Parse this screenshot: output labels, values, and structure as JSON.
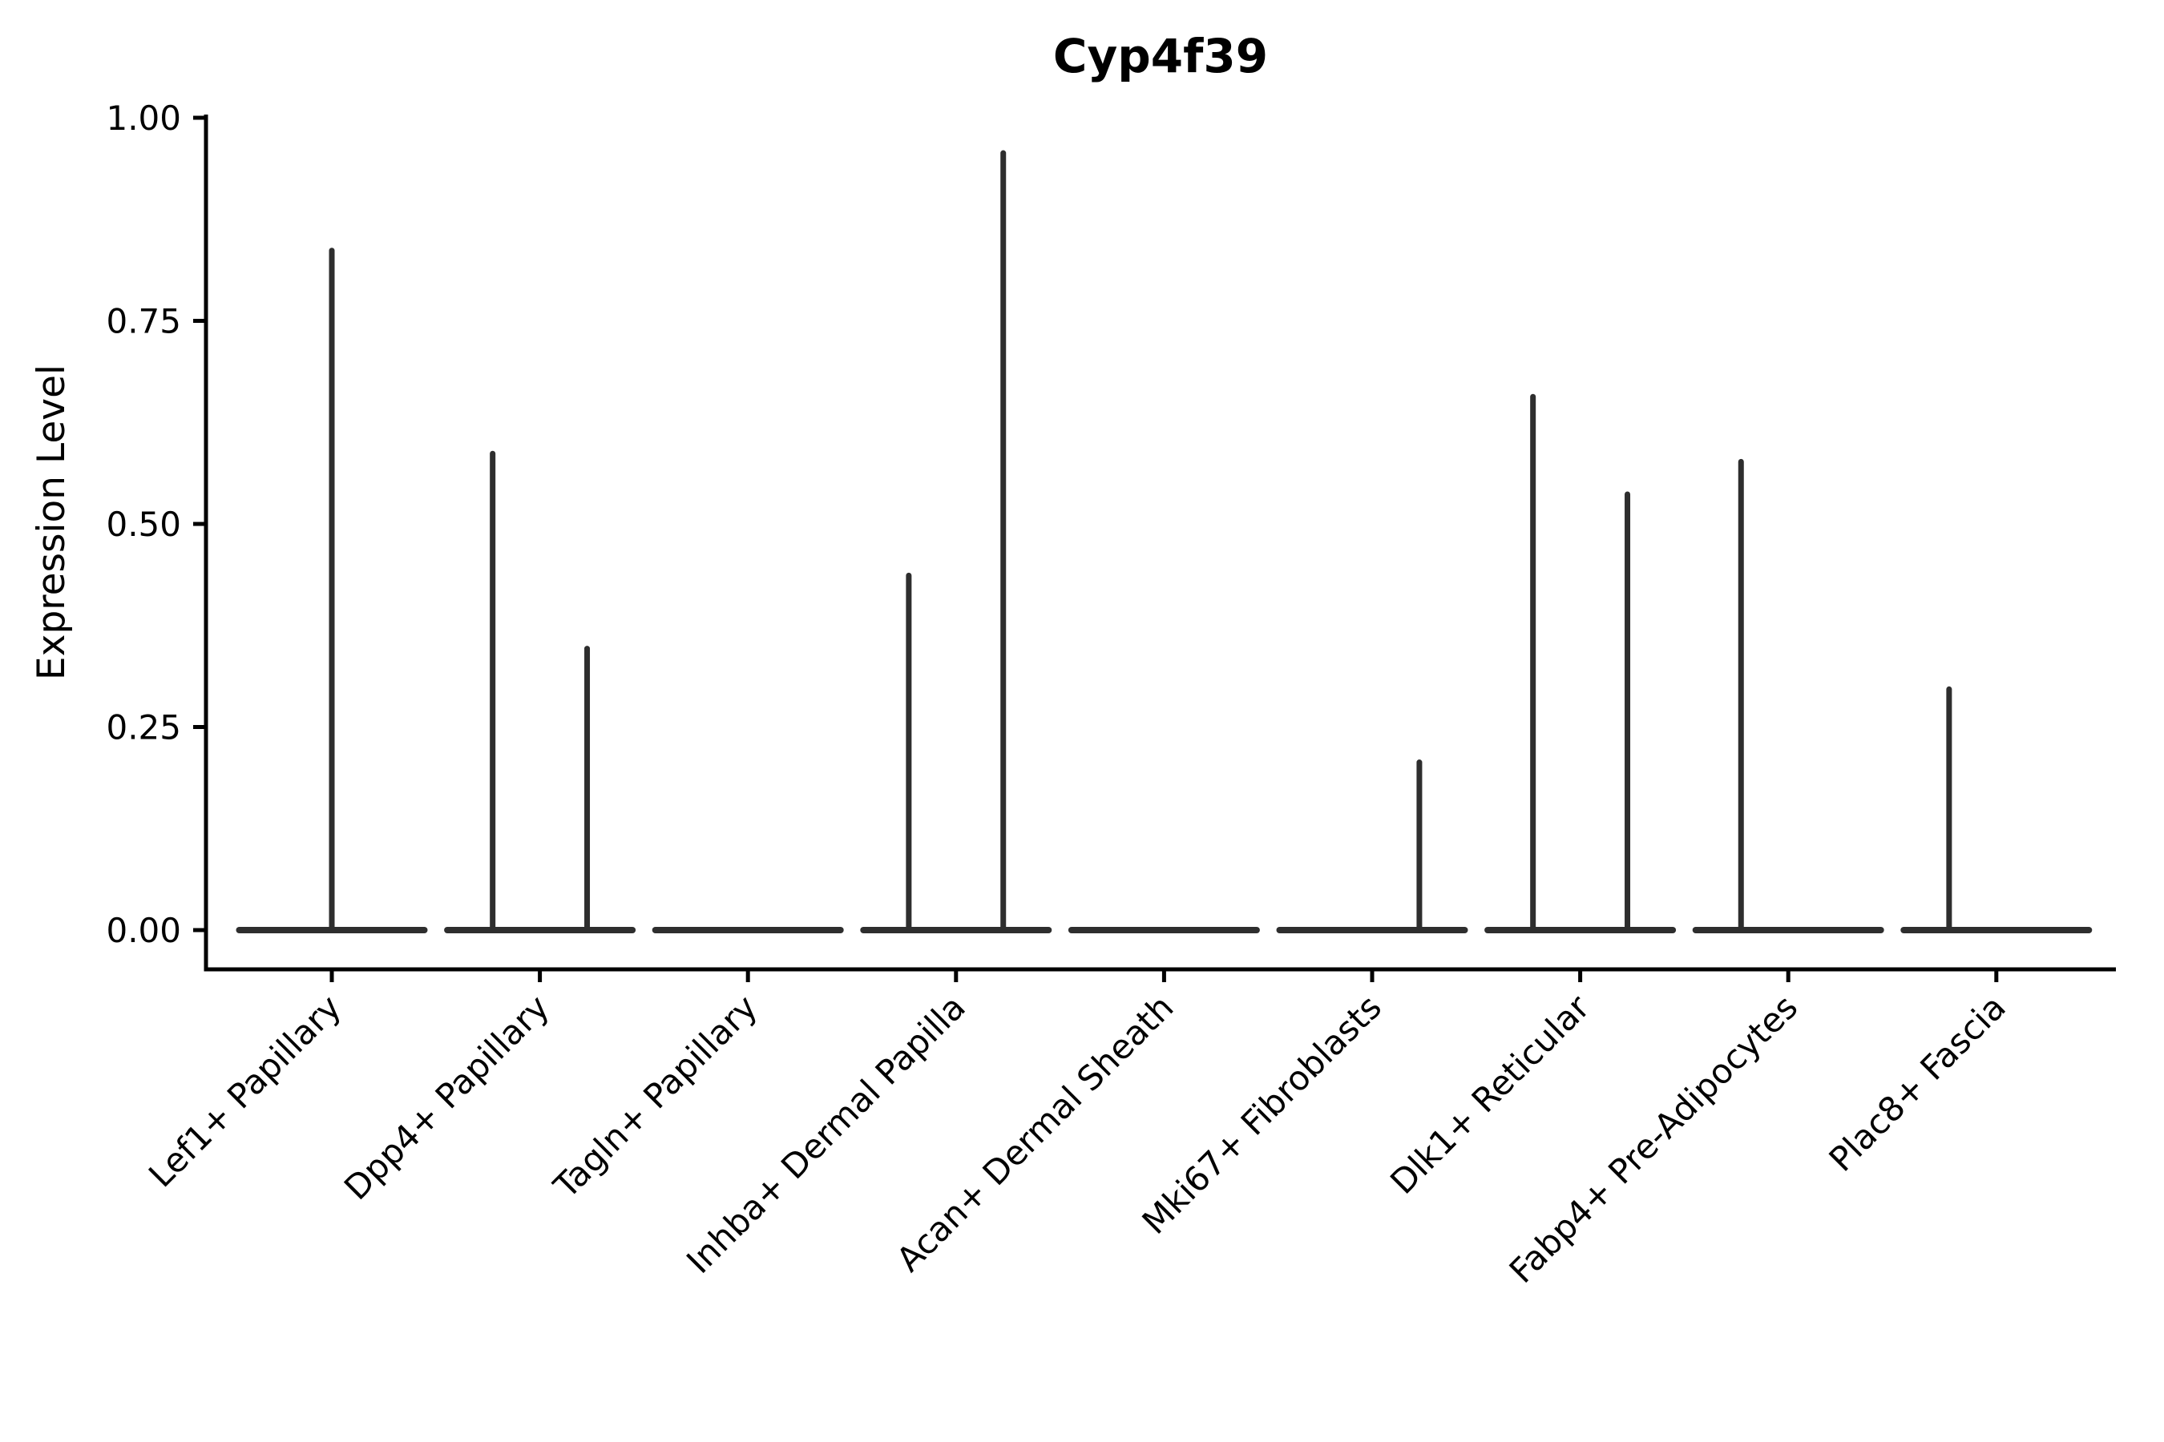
{
  "title": "Cyp4f39",
  "colors": {
    "violin": "#2e2e2e",
    "axis": "#000000",
    "text": "#000000",
    "background": "#ffffff"
  },
  "chart_data": {
    "type": "violin",
    "title": "Cyp4f39",
    "xlabel": "",
    "ylabel": "Expression Level",
    "ylim": [
      0.0,
      1.0
    ],
    "yticks": [
      0.0,
      0.25,
      0.5,
      0.75,
      1.0
    ],
    "ytick_labels": [
      "0.00",
      "0.25",
      "0.50",
      "0.75",
      "1.00"
    ],
    "grid": "off",
    "legend": "none",
    "x_tick_rotation": -45,
    "categories": [
      "Lef1+ Papillary",
      "Dpp4+ Papillary",
      "Tagln+ Papillary",
      "Inhba+ Dermal Papilla",
      "Acan+ Dermal Sheath",
      "Mki67+ Fibroblasts",
      "Dlk1+ Reticular",
      "Fabp4+ Pre-Adipocytes",
      "Plac8+ Fascia"
    ],
    "violins": [
      {
        "category": "Lef1+ Papillary",
        "baseline": 0.0,
        "spikes": [
          {
            "offset": 0.0,
            "height": 0.84
          }
        ]
      },
      {
        "category": "Dpp4+ Papillary",
        "baseline": 0.0,
        "spikes": [
          {
            "offset": -0.227,
            "height": 0.59
          },
          {
            "offset": 0.227,
            "height": 0.35
          }
        ]
      },
      {
        "category": "Tagln+ Papillary",
        "baseline": 0.0,
        "spikes": []
      },
      {
        "category": "Inhba+ Dermal Papilla",
        "baseline": 0.0,
        "spikes": [
          {
            "offset": -0.227,
            "height": 0.44
          },
          {
            "offset": 0.227,
            "height": 0.96
          }
        ]
      },
      {
        "category": "Acan+ Dermal Sheath",
        "baseline": 0.0,
        "spikes": []
      },
      {
        "category": "Mki67+ Fibroblasts",
        "baseline": 0.0,
        "spikes": [
          {
            "offset": 0.227,
            "height": 0.21
          }
        ]
      },
      {
        "category": "Dlk1+ Reticular",
        "baseline": 0.0,
        "spikes": [
          {
            "offset": -0.227,
            "height": 0.66
          },
          {
            "offset": 0.227,
            "height": 0.54
          }
        ]
      },
      {
        "category": "Fabp4+ Pre-Adipocytes",
        "baseline": 0.0,
        "spikes": [
          {
            "offset": -0.227,
            "height": 0.58
          }
        ]
      },
      {
        "category": "Plac8+ Fascia",
        "baseline": 0.0,
        "spikes": [
          {
            "offset": -0.227,
            "height": 0.3
          }
        ]
      }
    ]
  }
}
